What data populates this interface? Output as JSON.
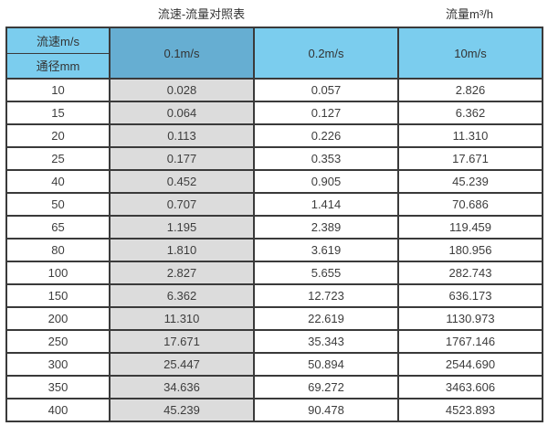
{
  "page": {
    "title_left": "流速-流量对照表",
    "title_right": "流量m³/h"
  },
  "table": {
    "corner": {
      "top": "流速m/s",
      "bottom": "通径mm"
    },
    "columns": [
      "0.1m/s",
      "0.2m/s",
      "10m/s"
    ],
    "rows": [
      {
        "diameter": "10",
        "values": [
          "0.028",
          "0.057",
          "2.826"
        ]
      },
      {
        "diameter": "15",
        "values": [
          "0.064",
          "0.127",
          "6.362"
        ]
      },
      {
        "diameter": "20",
        "values": [
          "0.113",
          "0.226",
          "11.310"
        ]
      },
      {
        "diameter": "25",
        "values": [
          "0.177",
          "0.353",
          "17.671"
        ]
      },
      {
        "diameter": "40",
        "values": [
          "0.452",
          "0.905",
          "45.239"
        ]
      },
      {
        "diameter": "50",
        "values": [
          "0.707",
          "1.414",
          "70.686"
        ]
      },
      {
        "diameter": "65",
        "values": [
          "1.195",
          "2.389",
          "119.459"
        ]
      },
      {
        "diameter": "80",
        "values": [
          "1.810",
          "3.619",
          "180.956"
        ]
      },
      {
        "diameter": "100",
        "values": [
          "2.827",
          "5.655",
          "282.743"
        ]
      },
      {
        "diameter": "150",
        "values": [
          "6.362",
          "12.723",
          "636.173"
        ]
      },
      {
        "diameter": "200",
        "values": [
          "11.310",
          "22.619",
          "1130.973"
        ]
      },
      {
        "diameter": "250",
        "values": [
          "17.671",
          "35.343",
          "1767.146"
        ]
      },
      {
        "diameter": "300",
        "values": [
          "25.447",
          "50.894",
          "2544.690"
        ]
      },
      {
        "diameter": "350",
        "values": [
          "34.636",
          "69.272",
          "3463.606"
        ]
      },
      {
        "diameter": "400",
        "values": [
          "45.239",
          "90.478",
          "4523.893"
        ]
      }
    ]
  },
  "colors": {
    "header_blue": "#7bcdee",
    "header_blue_dark": "#66aed2",
    "highlight_column_gray": "#dcdcdc",
    "border": "#3a3a3a",
    "text": "#333333"
  },
  "chart_data": {
    "type": "table",
    "title": "流速-流量对照表",
    "unit_label": "流量m³/h",
    "col_header": "流速m/s",
    "row_header": "通径mm",
    "columns": [
      "0.1m/s",
      "0.2m/s",
      "10m/s"
    ],
    "diameters_mm": [
      10,
      15,
      20,
      25,
      40,
      50,
      65,
      80,
      100,
      150,
      200,
      250,
      300,
      350,
      400
    ],
    "series": [
      {
        "name": "0.1m/s",
        "values": [
          0.028,
          0.064,
          0.113,
          0.177,
          0.452,
          0.707,
          1.195,
          1.81,
          2.827,
          6.362,
          11.31,
          17.671,
          25.447,
          34.636,
          45.239
        ]
      },
      {
        "name": "0.2m/s",
        "values": [
          0.057,
          0.127,
          0.226,
          0.353,
          0.905,
          1.414,
          2.389,
          3.619,
          5.655,
          12.723,
          22.619,
          35.343,
          50.894,
          69.272,
          90.478
        ]
      },
      {
        "name": "10m/s",
        "values": [
          2.826,
          6.362,
          11.31,
          17.671,
          45.239,
          70.686,
          119.459,
          180.956,
          282.743,
          636.173,
          1130.973,
          1767.146,
          2544.69,
          3463.606,
          4523.893
        ]
      }
    ],
    "layout": {
      "highlighted_column": "0.1m/s",
      "grid": true
    }
  }
}
